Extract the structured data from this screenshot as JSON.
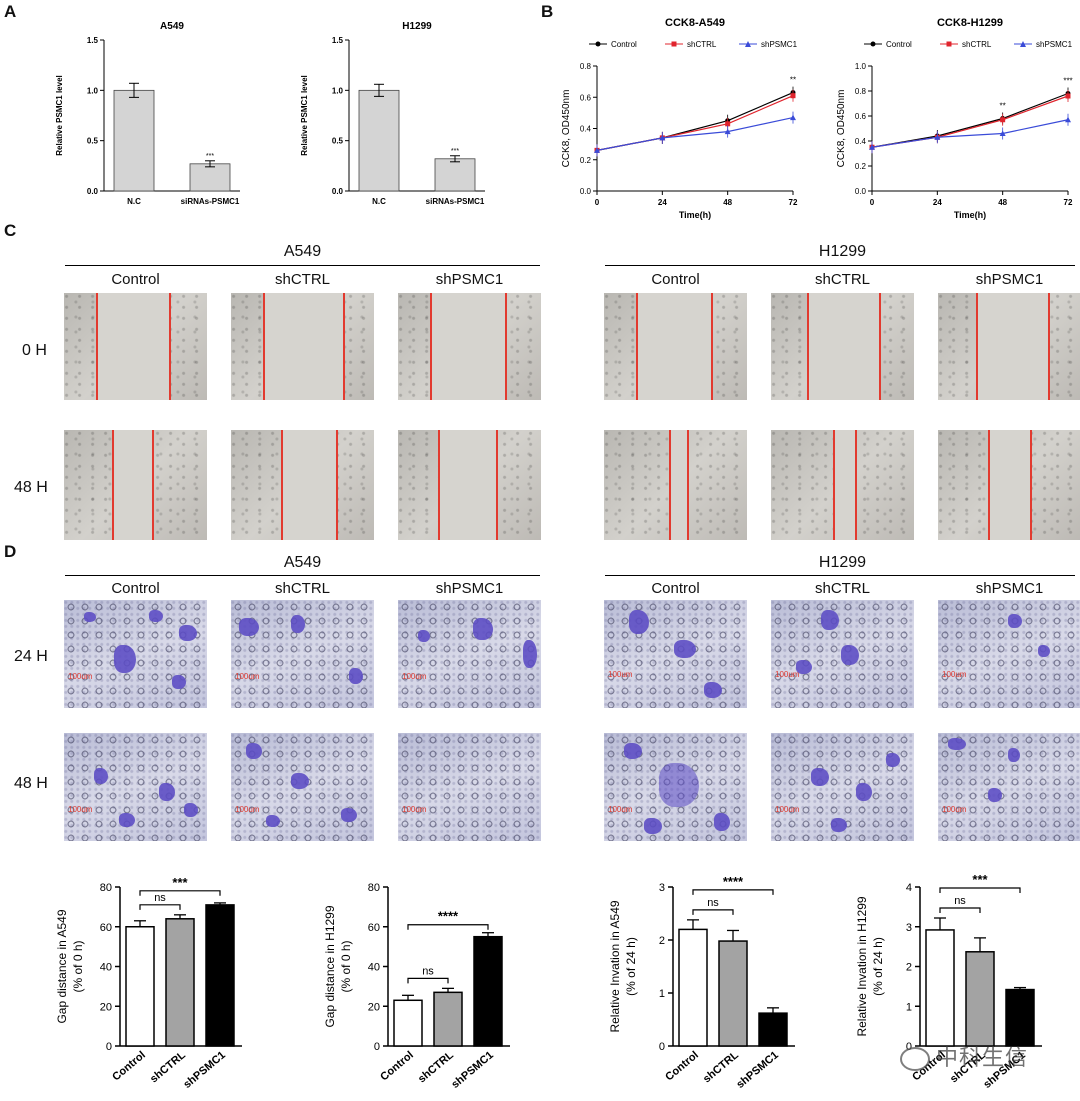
{
  "panels": {
    "A": "A",
    "B": "B",
    "C": "C",
    "D": "D"
  },
  "panelA": [
    {
      "title": "A549",
      "ylabel": "Relative PSMC1 level",
      "categories": [
        "N.C",
        "siRNAs-PSMC1"
      ],
      "values": [
        1.0,
        0.27
      ],
      "errors": [
        0.07,
        0.03
      ],
      "sig": "***",
      "yticks": [
        "0.0",
        "0.5",
        "1.0",
        "1.5"
      ]
    },
    {
      "title": "H1299",
      "ylabel": "Relative PSMC1 level",
      "categories": [
        "N.C",
        "siRNAs-PSMC1"
      ],
      "values": [
        1.0,
        0.32
      ],
      "errors": [
        0.06,
        0.03
      ],
      "sig": "***",
      "yticks": [
        "0.0",
        "0.5",
        "1.0",
        "1.5"
      ]
    }
  ],
  "panelB": [
    {
      "title": "CCK8-A549",
      "ylabel": "CCK8, OD450nm",
      "xlabel": "Time(h)",
      "x": [
        0,
        24,
        48,
        72
      ],
      "yticks": [
        "0.0",
        "0.2",
        "0.4",
        "0.6",
        "0.8"
      ],
      "sig": [
        {
          "x": 72,
          "text": "**"
        }
      ],
      "series": [
        {
          "name": "Control",
          "values": [
            0.26,
            0.34,
            0.45,
            0.63
          ]
        },
        {
          "name": "shCTRL",
          "values": [
            0.26,
            0.34,
            0.43,
            0.61
          ]
        },
        {
          "name": "shPSMC1",
          "values": [
            0.26,
            0.34,
            0.38,
            0.47
          ]
        }
      ]
    },
    {
      "title": "CCK8-H1299",
      "ylabel": "CCK8, OD450nm",
      "xlabel": "Time(h)",
      "x": [
        0,
        24,
        48,
        72
      ],
      "yticks": [
        "0.0",
        "0.2",
        "0.4",
        "0.6",
        "0.8",
        "1.0"
      ],
      "sig": [
        {
          "x": 48,
          "text": "**"
        },
        {
          "x": 72,
          "text": "***"
        }
      ],
      "series": [
        {
          "name": "Control",
          "values": [
            0.35,
            0.44,
            0.58,
            0.78
          ]
        },
        {
          "name": "shCTRL",
          "values": [
            0.35,
            0.43,
            0.57,
            0.76
          ]
        },
        {
          "name": "shPSMC1",
          "values": [
            0.35,
            0.43,
            0.46,
            0.57
          ]
        }
      ]
    }
  ],
  "legend": [
    "Control",
    "shCTRL",
    "shPSMC1"
  ],
  "colors": {
    "Control": "#000000",
    "shCTRL": "#e0242d",
    "shPSMC1": "#3a4bd8",
    "bar_gray": "#d4d4d4",
    "stain": "#5b4bc4",
    "wound_line": "#e23a2f"
  },
  "panelC": {
    "cells": [
      "A549",
      "H1299"
    ],
    "groups": [
      "Control",
      "shCTRL",
      "shPSMC1"
    ],
    "times": [
      "0 H",
      "48 H"
    ]
  },
  "panelD": {
    "cells": [
      "A549",
      "H1299"
    ],
    "groups": [
      "Control",
      "shCTRL",
      "shPSMC1"
    ],
    "times": [
      "24 H",
      "48 H"
    ],
    "scale_label": "100um"
  },
  "chart_data": [
    {
      "type": "bar",
      "title": "",
      "ylabel": "Gap distance in A549 (% of 0 h)",
      "categories": [
        "Control",
        "shCTRL",
        "shPSMC1"
      ],
      "values": [
        60,
        64,
        71
      ],
      "errors": [
        3,
        2,
        1
      ],
      "ylim": [
        0,
        80
      ],
      "yticks": [
        "0",
        "20",
        "40",
        "60",
        "80"
      ],
      "annotations": [
        {
          "pair": [
            0,
            1
          ],
          "text": "ns"
        },
        {
          "pair": [
            0,
            2
          ],
          "text": "***"
        }
      ]
    },
    {
      "type": "bar",
      "title": "",
      "ylabel": "Gap distance in H1299 (% of 0 h)",
      "categories": [
        "Control",
        "shCTRL",
        "shPSMC1"
      ],
      "values": [
        23,
        27,
        55
      ],
      "errors": [
        2.5,
        2,
        2
      ],
      "ylim": [
        0,
        80
      ],
      "yticks": [
        "0",
        "20",
        "40",
        "60",
        "80"
      ],
      "annotations": [
        {
          "pair": [
            0,
            1
          ],
          "text": "ns"
        },
        {
          "pair": [
            0,
            2
          ],
          "text": "****"
        }
      ]
    },
    {
      "type": "bar",
      "title": "",
      "ylabel": "Relative Invation in A549 (% of 24 h)",
      "categories": [
        "Control",
        "shCTRL",
        "shPSMC1"
      ],
      "values": [
        2.2,
        1.98,
        0.62
      ],
      "errors": [
        0.18,
        0.2,
        0.1
      ],
      "ylim": [
        0,
        3
      ],
      "yticks": [
        "0",
        "1",
        "2",
        "3"
      ],
      "annotations": [
        {
          "pair": [
            0,
            1
          ],
          "text": "ns"
        },
        {
          "pair": [
            0,
            2
          ],
          "text": "****"
        }
      ]
    },
    {
      "type": "bar",
      "title": "",
      "ylabel": "Relative Invation in H1299 (% of 24 h)",
      "categories": [
        "Control",
        "shCTRL",
        "shPSMC1"
      ],
      "values": [
        2.92,
        2.37,
        1.42
      ],
      "errors": [
        0.3,
        0.35,
        0.05
      ],
      "ylim": [
        0,
        4
      ],
      "yticks": [
        "0",
        "1",
        "2",
        "3",
        "4"
      ],
      "annotations": [
        {
          "pair": [
            0,
            1
          ],
          "text": "ns"
        },
        {
          "pair": [
            0,
            2
          ],
          "text": "***"
        }
      ]
    }
  ],
  "watermark": "中科生信"
}
